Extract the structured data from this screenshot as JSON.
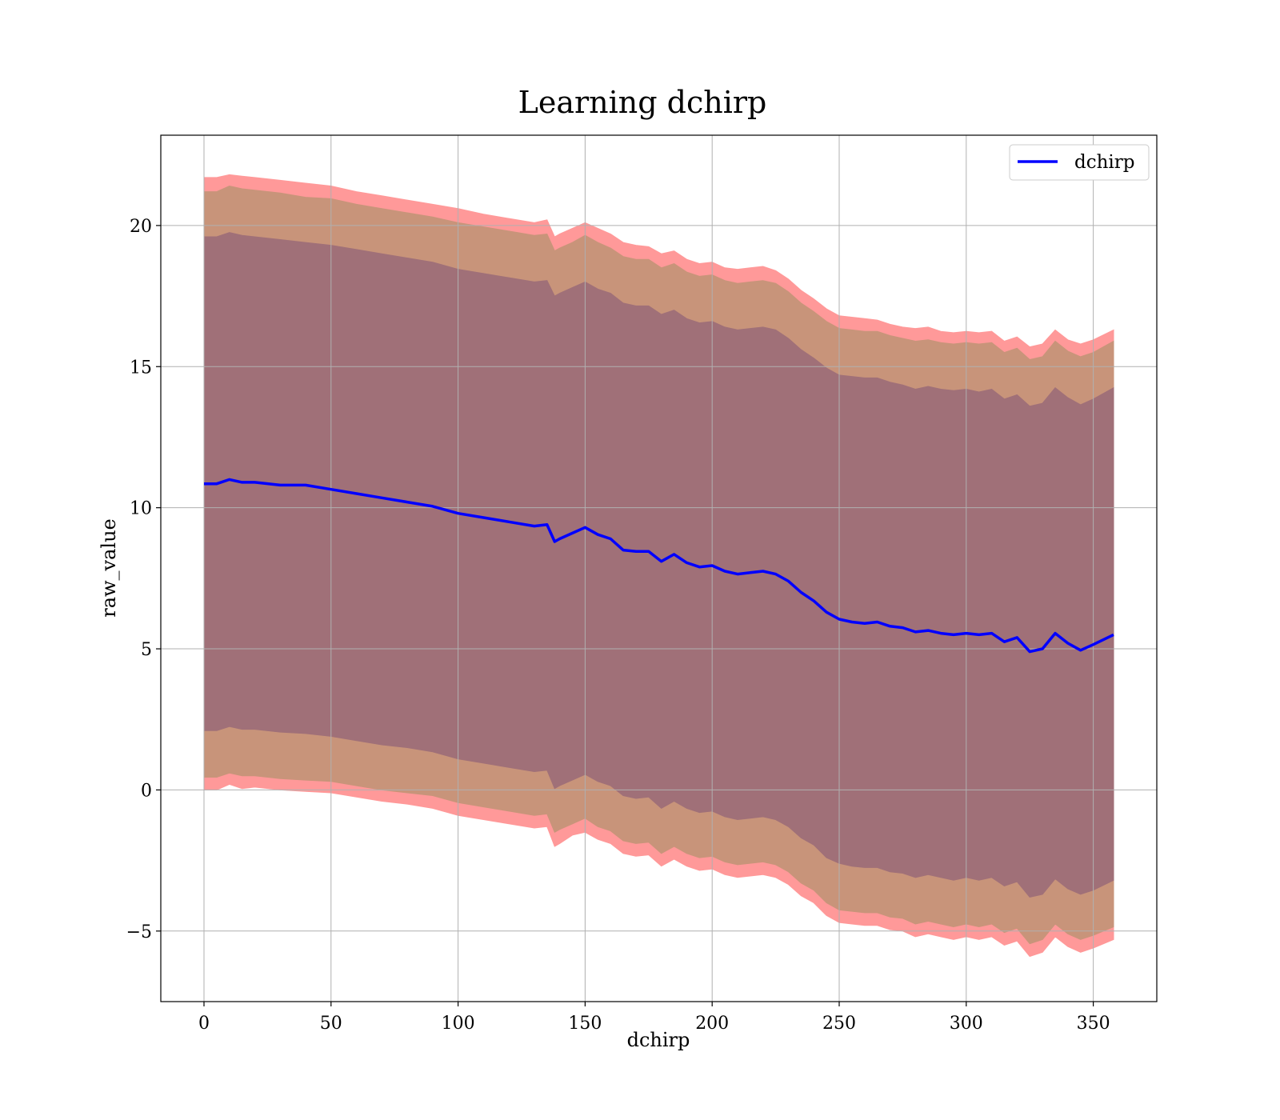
{
  "chart_data": {
    "type": "line",
    "title": "Learning dchirp",
    "xlabel": "dchirp",
    "ylabel": "raw_value",
    "xlim": [
      -17,
      375
    ],
    "ylim": [
      -7.5,
      23.2
    ],
    "xticks": [
      0,
      50,
      100,
      150,
      200,
      250,
      300,
      350
    ],
    "yticks": [
      -5,
      0,
      5,
      10,
      15,
      20
    ],
    "ytick_labels": [
      "−5",
      "0",
      "5",
      "10",
      "15",
      "20"
    ],
    "grid": true,
    "legend_position": "top-right",
    "colors": {
      "line": "#0000ff",
      "outer_band": "#ff9999",
      "middle_band": "#c8947a",
      "inner_band": "#a07078",
      "grid": "#b0b0b0"
    },
    "series": [
      {
        "name": "dchirp",
        "x": [
          0,
          5,
          10,
          15,
          20,
          30,
          40,
          50,
          60,
          70,
          80,
          90,
          100,
          110,
          120,
          130,
          135,
          138,
          140,
          145,
          150,
          155,
          160,
          165,
          170,
          175,
          180,
          185,
          190,
          195,
          200,
          205,
          210,
          215,
          220,
          225,
          230,
          235,
          240,
          245,
          250,
          255,
          260,
          265,
          270,
          275,
          280,
          285,
          290,
          295,
          300,
          305,
          310,
          315,
          320,
          325,
          330,
          335,
          340,
          345,
          350,
          358
        ],
        "y": [
          10.85,
          10.85,
          11.0,
          10.9,
          10.9,
          10.8,
          10.8,
          10.65,
          10.5,
          10.35,
          10.2,
          10.05,
          9.8,
          9.65,
          9.5,
          9.35,
          9.4,
          8.8,
          8.9,
          9.1,
          9.3,
          9.05,
          8.9,
          8.5,
          8.45,
          8.45,
          8.1,
          8.35,
          8.05,
          7.9,
          7.95,
          7.75,
          7.65,
          7.7,
          7.75,
          7.65,
          7.4,
          7.0,
          6.7,
          6.3,
          6.05,
          5.95,
          5.9,
          5.95,
          5.8,
          5.75,
          5.6,
          5.65,
          5.55,
          5.5,
          5.55,
          5.5,
          5.55,
          5.25,
          5.4,
          4.9,
          5.0,
          5.55,
          5.2,
          4.95,
          5.15,
          5.5
        ]
      }
    ],
    "bands": [
      {
        "x": [
          0,
          5,
          10,
          15,
          20,
          30,
          40,
          50,
          60,
          70,
          80,
          90,
          100,
          110,
          120,
          130,
          135,
          138,
          140,
          145,
          150,
          155,
          160,
          165,
          170,
          175,
          180,
          185,
          190,
          195,
          200,
          205,
          210,
          215,
          220,
          225,
          230,
          235,
          240,
          245,
          250,
          255,
          260,
          265,
          270,
          275,
          280,
          285,
          290,
          295,
          300,
          305,
          310,
          315,
          320,
          325,
          330,
          335,
          340,
          345,
          350,
          358
        ],
        "upper": [
          21.7,
          21.7,
          21.8,
          21.75,
          21.7,
          21.6,
          21.5,
          21.4,
          21.2,
          21.05,
          20.9,
          20.75,
          20.6,
          20.4,
          20.25,
          20.1,
          20.2,
          19.6,
          19.7,
          19.9,
          20.1,
          19.9,
          19.7,
          19.4,
          19.3,
          19.25,
          19.0,
          19.1,
          18.8,
          18.65,
          18.7,
          18.5,
          18.45,
          18.5,
          18.55,
          18.4,
          18.1,
          17.7,
          17.4,
          17.05,
          16.8,
          16.75,
          16.7,
          16.65,
          16.5,
          16.4,
          16.35,
          16.4,
          16.25,
          16.2,
          16.25,
          16.2,
          16.25,
          15.9,
          16.05,
          15.7,
          15.8,
          16.3,
          15.95,
          15.8,
          15.95,
          16.3
        ],
        "lower": [
          0.0,
          0.0,
          0.2,
          0.05,
          0.1,
          -0.0,
          -0.05,
          -0.1,
          -0.25,
          -0.4,
          -0.5,
          -0.65,
          -0.9,
          -1.05,
          -1.2,
          -1.35,
          -1.3,
          -2.0,
          -1.9,
          -1.6,
          -1.5,
          -1.75,
          -1.9,
          -2.25,
          -2.35,
          -2.3,
          -2.7,
          -2.45,
          -2.7,
          -2.85,
          -2.8,
          -3.0,
          -3.1,
          -3.05,
          -3.0,
          -3.1,
          -3.35,
          -3.75,
          -4.0,
          -4.45,
          -4.7,
          -4.75,
          -4.8,
          -4.8,
          -4.95,
          -5.0,
          -5.2,
          -5.1,
          -5.2,
          -5.3,
          -5.2,
          -5.3,
          -5.2,
          -5.5,
          -5.35,
          -5.9,
          -5.75,
          -5.2,
          -5.55,
          -5.75,
          -5.6,
          -5.3
        ]
      },
      {
        "x": [
          0,
          5,
          10,
          15,
          20,
          30,
          40,
          50,
          60,
          70,
          80,
          90,
          100,
          110,
          120,
          130,
          135,
          138,
          140,
          145,
          150,
          155,
          160,
          165,
          170,
          175,
          180,
          185,
          190,
          195,
          200,
          205,
          210,
          215,
          220,
          225,
          230,
          235,
          240,
          245,
          250,
          255,
          260,
          265,
          270,
          275,
          280,
          285,
          290,
          295,
          300,
          305,
          310,
          315,
          320,
          325,
          330,
          335,
          340,
          345,
          350,
          358
        ],
        "upper": [
          21.2,
          21.2,
          21.4,
          21.3,
          21.25,
          21.15,
          21.0,
          20.95,
          20.75,
          20.6,
          20.45,
          20.3,
          20.1,
          19.95,
          19.8,
          19.65,
          19.7,
          19.1,
          19.2,
          19.4,
          19.65,
          19.4,
          19.2,
          18.9,
          18.8,
          18.8,
          18.5,
          18.65,
          18.35,
          18.2,
          18.25,
          18.05,
          17.95,
          18.0,
          18.05,
          17.95,
          17.65,
          17.25,
          16.95,
          16.6,
          16.35,
          16.3,
          16.25,
          16.25,
          16.1,
          16.0,
          15.9,
          15.95,
          15.85,
          15.8,
          15.85,
          15.8,
          15.85,
          15.5,
          15.65,
          15.25,
          15.35,
          15.9,
          15.55,
          15.35,
          15.5,
          15.9
        ],
        "lower": [
          0.45,
          0.45,
          0.6,
          0.5,
          0.5,
          0.4,
          0.35,
          0.3,
          0.15,
          0.0,
          -0.1,
          -0.2,
          -0.45,
          -0.6,
          -0.75,
          -0.9,
          -0.85,
          -1.5,
          -1.4,
          -1.2,
          -1.0,
          -1.3,
          -1.45,
          -1.8,
          -1.9,
          -1.85,
          -2.25,
          -2.0,
          -2.25,
          -2.4,
          -2.35,
          -2.55,
          -2.65,
          -2.6,
          -2.55,
          -2.65,
          -2.9,
          -3.3,
          -3.55,
          -4.0,
          -4.25,
          -4.3,
          -4.35,
          -4.35,
          -4.5,
          -4.55,
          -4.75,
          -4.65,
          -4.75,
          -4.85,
          -4.75,
          -4.85,
          -4.75,
          -5.05,
          -4.9,
          -5.45,
          -5.3,
          -4.75,
          -5.1,
          -5.3,
          -5.15,
          -4.85
        ]
      },
      {
        "x": [
          0,
          5,
          10,
          15,
          20,
          30,
          40,
          50,
          60,
          70,
          80,
          90,
          100,
          110,
          120,
          130,
          135,
          138,
          140,
          145,
          150,
          155,
          160,
          165,
          170,
          175,
          180,
          185,
          190,
          195,
          200,
          205,
          210,
          215,
          220,
          225,
          230,
          235,
          240,
          245,
          250,
          255,
          260,
          265,
          270,
          275,
          280,
          285,
          290,
          295,
          300,
          305,
          310,
          315,
          320,
          325,
          330,
          335,
          340,
          345,
          350,
          358
        ],
        "upper": [
          19.6,
          19.6,
          19.75,
          19.65,
          19.6,
          19.5,
          19.4,
          19.3,
          19.15,
          19.0,
          18.85,
          18.7,
          18.45,
          18.3,
          18.15,
          18.0,
          18.05,
          17.5,
          17.6,
          17.8,
          18.0,
          17.75,
          17.6,
          17.25,
          17.15,
          17.15,
          16.85,
          17.0,
          16.7,
          16.55,
          16.6,
          16.4,
          16.3,
          16.35,
          16.4,
          16.3,
          16.0,
          15.6,
          15.3,
          14.95,
          14.7,
          14.65,
          14.6,
          14.6,
          14.45,
          14.35,
          14.2,
          14.3,
          14.2,
          14.15,
          14.2,
          14.1,
          14.2,
          13.85,
          14.0,
          13.6,
          13.7,
          14.25,
          13.9,
          13.65,
          13.85,
          14.25
        ],
        "lower": [
          2.1,
          2.1,
          2.25,
          2.15,
          2.15,
          2.05,
          2.0,
          1.9,
          1.75,
          1.6,
          1.5,
          1.35,
          1.1,
          0.95,
          0.8,
          0.65,
          0.7,
          0.05,
          0.15,
          0.35,
          0.55,
          0.3,
          0.15,
          -0.2,
          -0.3,
          -0.25,
          -0.65,
          -0.4,
          -0.65,
          -0.8,
          -0.75,
          -0.95,
          -1.05,
          -1.0,
          -0.95,
          -1.05,
          -1.3,
          -1.7,
          -1.95,
          -2.4,
          -2.6,
          -2.7,
          -2.75,
          -2.75,
          -2.9,
          -2.95,
          -3.1,
          -3.0,
          -3.1,
          -3.2,
          -3.1,
          -3.2,
          -3.1,
          -3.4,
          -3.25,
          -3.8,
          -3.7,
          -3.15,
          -3.5,
          -3.7,
          -3.55,
          -3.2
        ]
      }
    ]
  }
}
